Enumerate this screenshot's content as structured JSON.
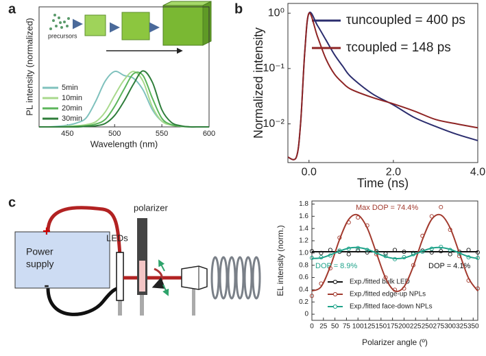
{
  "panel_labels": [
    "a",
    "b",
    "c"
  ],
  "diagram": {
    "inset_label": "precursors",
    "power_supply": [
      "Power",
      "supply"
    ],
    "plus": "+",
    "minus": "-",
    "leds": "LEDs",
    "polarizer": "polarizer"
  },
  "chart_data": [
    {
      "type": "line",
      "xlabel": "Wavelength (nm)",
      "ylabel": "PL intensity (normalized)",
      "x": [
        420,
        430,
        440,
        450,
        460,
        470,
        480,
        490,
        500,
        510,
        520,
        530,
        540,
        550,
        560,
        570,
        580,
        590,
        600
      ],
      "xlim": [
        420,
        600
      ],
      "xticks": [
        450,
        500,
        550,
        600
      ],
      "ylim": [
        0,
        2.1
      ],
      "series": [
        {
          "name": "5min",
          "color": "#7fc1bd",
          "values": [
            0,
            0,
            0.01,
            0.03,
            0.07,
            0.16,
            0.45,
            0.8,
            0.97,
            0.9,
            0.85,
            0.65,
            0.3,
            0.1,
            0.04,
            0.01,
            0,
            0,
            0
          ]
        },
        {
          "name": "10min",
          "color": "#a8d98c",
          "values": [
            0,
            0,
            0,
            0.01,
            0.02,
            0.04,
            0.09,
            0.26,
            0.55,
            0.82,
            0.97,
            0.8,
            0.35,
            0.1,
            0.03,
            0.01,
            0,
            0,
            0
          ]
        },
        {
          "name": "20min",
          "color": "#5bb55a",
          "values": [
            0,
            0,
            0,
            0,
            0.01,
            0.02,
            0.05,
            0.13,
            0.36,
            0.66,
            0.93,
            0.9,
            0.5,
            0.15,
            0.04,
            0.01,
            0,
            0,
            0
          ]
        },
        {
          "name": "30min",
          "color": "#2e7d3a",
          "values": [
            0,
            0,
            0,
            0,
            0,
            0.01,
            0.02,
            0.06,
            0.2,
            0.45,
            0.75,
            0.98,
            0.78,
            0.3,
            0.08,
            0.02,
            0,
            0,
            0
          ]
        }
      ]
    },
    {
      "type": "line",
      "xlabel": "Time (ns)",
      "ylabel": "Normalized intensity",
      "log_y": true,
      "x": [
        -0.5,
        -0.3,
        -0.2,
        -0.1,
        0,
        0.2,
        0.4,
        0.6,
        0.8,
        1.0,
        1.5,
        2.0,
        2.5,
        3.0,
        3.5,
        4.0
      ],
      "xlim": [
        -0.5,
        4.0
      ],
      "xticks": [
        {
          "value": 0,
          "label": "0.0"
        },
        {
          "value": 2,
          "label": "2.0"
        },
        {
          "value": 4,
          "label": "4.0"
        }
      ],
      "ylim": [
        0.002,
        1.5
      ],
      "yticks": [
        {
          "value": 1,
          "label": "10⁰"
        },
        {
          "value": 0.1,
          "label": "10⁻¹"
        },
        {
          "value": 0.01,
          "label": "10⁻²"
        }
      ],
      "series": [
        {
          "name": "τuncoupled = 400 ps",
          "color": "#2b2d6e",
          "values": [
            0.0025,
            0.0025,
            0.01,
            0.2,
            1,
            0.6,
            0.33,
            0.18,
            0.11,
            0.07,
            0.035,
            0.022,
            0.013,
            0.009,
            0.0065,
            0.005
          ]
        },
        {
          "name": "τcoupled = 148 ps",
          "color": "#8e2424",
          "values": [
            0.0025,
            0.0025,
            0.01,
            0.2,
            1,
            0.38,
            0.15,
            0.08,
            0.055,
            0.042,
            0.03,
            0.023,
            0.017,
            0.012,
            0.01,
            0.0085
          ]
        }
      ]
    },
    {
      "type": "scatter",
      "xlabel": "Polarizer angle (º)",
      "ylabel": "EL intensity (norm.)",
      "x": [
        0,
        20,
        40,
        60,
        80,
        100,
        120,
        140,
        160,
        180,
        200,
        220,
        240,
        260,
        280,
        300,
        320,
        340,
        360
      ],
      "xlim": [
        0,
        360
      ],
      "xticks": [
        0,
        25,
        50,
        75,
        100,
        125,
        150,
        175,
        200,
        225,
        250,
        275,
        300,
        325,
        350
      ],
      "ylim": [
        -0.1,
        1.85
      ],
      "yticks": [
        0,
        0.2,
        0.4,
        0.6,
        0.8,
        {
          "value": 1,
          "label": "1.0"
        },
        1.2,
        1.4,
        1.6,
        1.8
      ],
      "series": [
        {
          "name": "Exp./fitted bulk LED",
          "color": "#111111",
          "values": [
            1.03,
            1.0,
            1.05,
            1.02,
            0.98,
            1.04,
            1.01,
            1.03,
            0.99,
            1.05,
            1.02,
            1.0,
            1.04,
            1.01,
            1.03,
            0.98,
            1.02,
            1.05,
            1.01
          ],
          "fit": [
            1.02,
            1.02,
            1.02,
            1.02,
            1.02,
            1.02,
            1.02,
            1.02,
            1.02,
            1.02,
            1.02,
            1.02,
            1.02,
            1.02,
            1.02,
            1.02,
            1.02,
            1.02,
            1.02
          ]
        },
        {
          "name": "Exp./fitted edge-up NPLs",
          "color": "#a23a2e",
          "values": [
            0.3,
            0.5,
            0.75,
            1.25,
            1.5,
            1.58,
            1.45,
            0.98,
            0.6,
            0.4,
            0.42,
            0.8,
            1.28,
            1.6,
            1.75,
            1.38,
            0.95,
            0.55,
            0.42
          ],
          "fit": [
            0.38,
            0.45,
            0.78,
            1.22,
            1.55,
            1.62,
            1.41,
            1.0,
            0.59,
            0.38,
            0.45,
            0.78,
            1.22,
            1.55,
            1.62,
            1.41,
            1.0,
            0.59,
            0.38
          ]
        },
        {
          "name": "Exp./fitted face-down NPLs",
          "color": "#1fa38a",
          "values": [
            0.92,
            0.93,
            0.96,
            1.04,
            1.07,
            1.08,
            1.05,
            1.01,
            0.95,
            0.9,
            0.93,
            0.98,
            1.02,
            1.07,
            1.1,
            1.05,
            0.99,
            0.93,
            0.92
          ],
          "fit": [
            0.91,
            0.92,
            0.97,
            1.03,
            1.08,
            1.09,
            1.06,
            1.0,
            0.94,
            0.91,
            0.92,
            0.97,
            1.03,
            1.08,
            1.09,
            1.06,
            1.0,
            0.94,
            0.91
          ]
        }
      ],
      "annotations": [
        {
          "text": "Max DOP = 74.4%",
          "color": "#a23a2e"
        },
        {
          "text": "DOP = 8.9%",
          "color": "#1fa38a"
        },
        {
          "text": "DOP = 4.1%",
          "color": "#111111"
        }
      ]
    }
  ]
}
